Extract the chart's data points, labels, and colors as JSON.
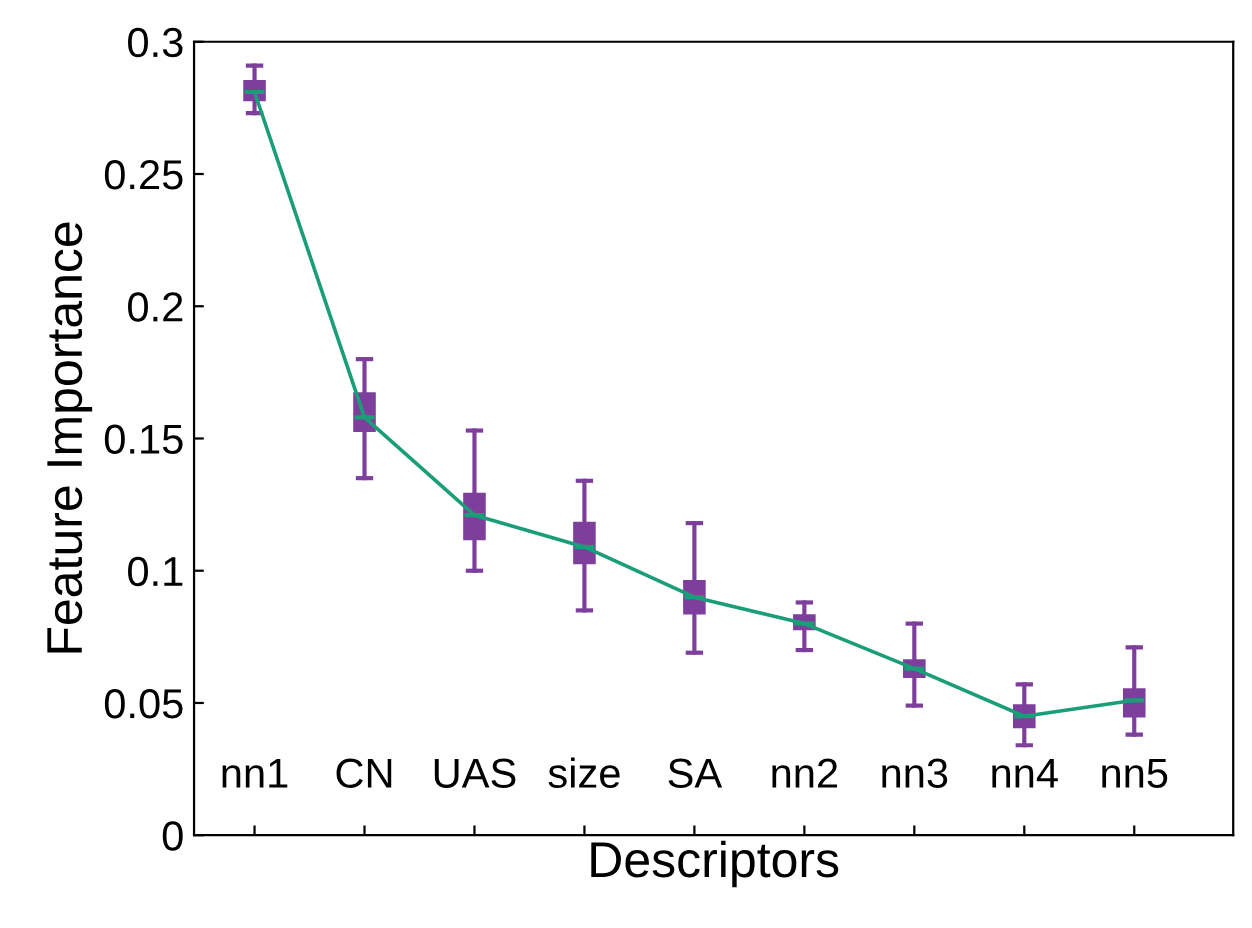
{
  "chart_data": {
    "type": "box",
    "xlabel": "Descriptors",
    "ylabel": "Feature Importance",
    "categories": [
      "nn1",
      "CN",
      "UAS",
      "size",
      "SA",
      "nn2",
      "nn3",
      "nn4",
      "nn5"
    ],
    "ylim": [
      0,
      0.3
    ],
    "yticks": [
      0,
      0.05,
      0.1,
      0.15,
      0.2,
      0.25,
      0.3
    ],
    "grid": false,
    "legend": false,
    "series": [
      {
        "color": "#7e3f9c",
        "boxes": [
          {
            "low": 0.273,
            "q1": 0.278,
            "median": 0.281,
            "q3": 0.285,
            "high": 0.291
          },
          {
            "low": 0.135,
            "q1": 0.153,
            "median": 0.158,
            "q3": 0.167,
            "high": 0.18
          },
          {
            "low": 0.1,
            "q1": 0.112,
            "median": 0.121,
            "q3": 0.129,
            "high": 0.153
          },
          {
            "low": 0.085,
            "q1": 0.103,
            "median": 0.109,
            "q3": 0.118,
            "high": 0.134
          },
          {
            "low": 0.069,
            "q1": 0.084,
            "median": 0.09,
            "q3": 0.096,
            "high": 0.118
          },
          {
            "low": 0.07,
            "q1": 0.078,
            "median": 0.08,
            "q3": 0.083,
            "high": 0.088
          },
          {
            "low": 0.049,
            "q1": 0.06,
            "median": 0.063,
            "q3": 0.066,
            "high": 0.08
          },
          {
            "low": 0.034,
            "q1": 0.041,
            "median": 0.045,
            "q3": 0.049,
            "high": 0.057
          },
          {
            "low": 0.038,
            "q1": 0.045,
            "median": 0.051,
            "q3": 0.055,
            "high": 0.071
          }
        ]
      },
      {
        "type": "line",
        "color": "#1a9e77",
        "marker": "none",
        "line_style": "solid",
        "values": [
          0.281,
          0.158,
          0.121,
          0.109,
          0.09,
          0.08,
          0.063,
          0.045,
          0.051
        ]
      }
    ]
  }
}
